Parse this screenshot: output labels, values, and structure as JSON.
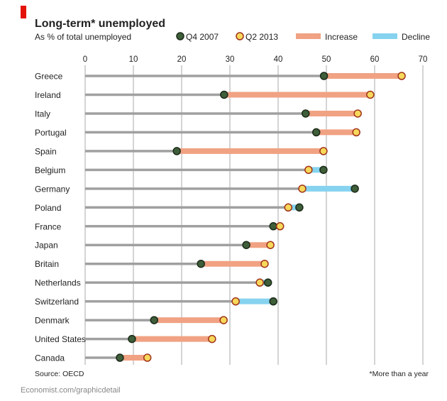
{
  "chart_data": {
    "type": "dumbbell",
    "title": "Long-term* unemployed",
    "subtitle": "As % of total unemployed",
    "legend": [
      {
        "label": "Q4 2007",
        "kind": "dot",
        "color": "#3f5e3a"
      },
      {
        "label": "Q2 2013",
        "kind": "dot",
        "color": "#f7d85a"
      },
      {
        "label": "Increase",
        "kind": "bar",
        "color": "#f0a283"
      },
      {
        "label": "Decline",
        "kind": "bar",
        "color": "#86d3ef"
      }
    ],
    "legend_placement": "top",
    "xlim": [
      0,
      70
    ],
    "xticks": [
      0,
      10,
      20,
      30,
      40,
      50,
      60,
      70
    ],
    "grid": true,
    "categories": [
      "Greece",
      "Ireland",
      "Italy",
      "Portugal",
      "Spain",
      "Belgium",
      "Germany",
      "Poland",
      "France",
      "Japan",
      "Britain",
      "Netherlands",
      "Switzerland",
      "Denmark",
      "United States",
      "Canada"
    ],
    "series": [
      {
        "name": "Q4 2007",
        "values": [
          49.5,
          28.8,
          45.7,
          47.9,
          19.0,
          49.4,
          55.9,
          44.4,
          39.0,
          33.4,
          24.0,
          37.9,
          39.0,
          14.3,
          9.7,
          7.2
        ]
      },
      {
        "name": "Q2 2013",
        "values": [
          65.6,
          59.1,
          56.5,
          56.2,
          49.4,
          46.3,
          45.0,
          42.1,
          40.4,
          38.4,
          37.2,
          36.2,
          31.2,
          28.7,
          26.3,
          12.9
        ]
      }
    ],
    "source": "Source: OECD",
    "footnote": "*More than a year",
    "credit": "Economist.com/graphicdetail"
  },
  "colors": {
    "accent": "#e3120b",
    "line": "#a0a0a0",
    "grid": "#b8b8b8",
    "dot_outline_2013": "#a0321b",
    "dot_outline_2007": "#1a2a18"
  }
}
